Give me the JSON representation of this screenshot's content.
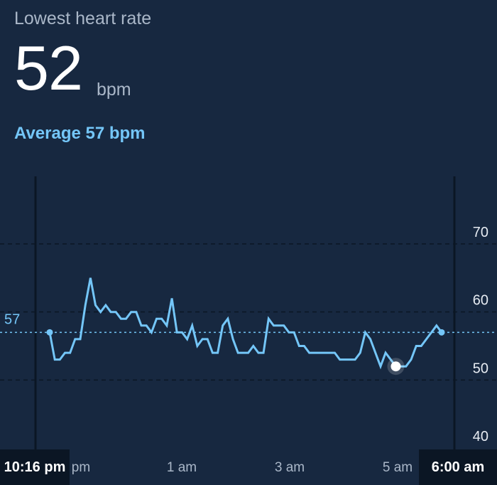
{
  "header": {
    "title": "Lowest heart rate",
    "value": "52",
    "unit": "bpm",
    "average_text": "Average 57 bpm"
  },
  "colors": {
    "background": "#172840",
    "line": "#74c6f8",
    "text_muted": "#aab7c8",
    "text": "#ffffff"
  },
  "chart_data": {
    "type": "line",
    "title": "",
    "xlabel": "",
    "ylabel": "",
    "ylim": [
      40,
      70
    ],
    "y_ticks": [
      "70",
      "60",
      "50",
      "40"
    ],
    "average_label": "57",
    "average_value": 57,
    "x_labels": [
      "1 am",
      "3 am",
      "5 am"
    ],
    "start_label": "10:16 pm",
    "end_label": "6:00 am",
    "partial_label": "pm",
    "min_point_index": 68,
    "series": [
      {
        "values": [
          57,
          53,
          53,
          54,
          54,
          56,
          56,
          61,
          65,
          61,
          60,
          61,
          60,
          60,
          59,
          59,
          60,
          60,
          58,
          58,
          57,
          59,
          59,
          58,
          62,
          57,
          57,
          56,
          58,
          55,
          56,
          56,
          54,
          54,
          58,
          59,
          56,
          54,
          54,
          54,
          55,
          54,
          54,
          59,
          58,
          58,
          58,
          57,
          57,
          55,
          55,
          54,
          54,
          54,
          54,
          54,
          54,
          53,
          53,
          53,
          53,
          54,
          57,
          56,
          54,
          52,
          54,
          53,
          52,
          52,
          52,
          53,
          55,
          55,
          56,
          57,
          58,
          57
        ]
      }
    ]
  }
}
